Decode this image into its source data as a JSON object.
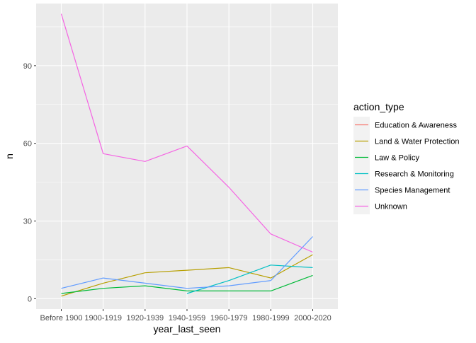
{
  "chart_data": {
    "type": "line",
    "xlabel": "year_last_seen",
    "ylabel": "n",
    "categories": [
      "Before 1900",
      "1900-1919",
      "1920-1939",
      "1940-1959",
      "1960-1979",
      "1980-1999",
      "2000-2020"
    ],
    "ylim": [
      -4,
      114
    ],
    "yticks": [
      0,
      30,
      60,
      90
    ],
    "grid": true,
    "legend": {
      "title": "action_type",
      "position": "right"
    },
    "series": [
      {
        "name": "Education & Awareness",
        "color": "#F8766D",
        "values": [
          null,
          null,
          null,
          null,
          null,
          null,
          null
        ]
      },
      {
        "name": "Land & Water Protection",
        "color": "#B79F00",
        "values": [
          1,
          6,
          10,
          11,
          12,
          8,
          17
        ]
      },
      {
        "name": "Law & Policy",
        "color": "#00BA38",
        "values": [
          2,
          4,
          5,
          3,
          3,
          3,
          9
        ]
      },
      {
        "name": "Research & Monitoring",
        "color": "#00BFC4",
        "values": [
          null,
          null,
          null,
          2,
          7,
          13,
          12
        ]
      },
      {
        "name": "Species Management",
        "color": "#619CFF",
        "values": [
          4,
          8,
          6,
          4,
          5,
          7,
          24
        ]
      },
      {
        "name": "Unknown",
        "color": "#F564E3",
        "values": [
          110,
          56,
          53,
          59,
          43,
          25,
          18
        ]
      }
    ]
  }
}
